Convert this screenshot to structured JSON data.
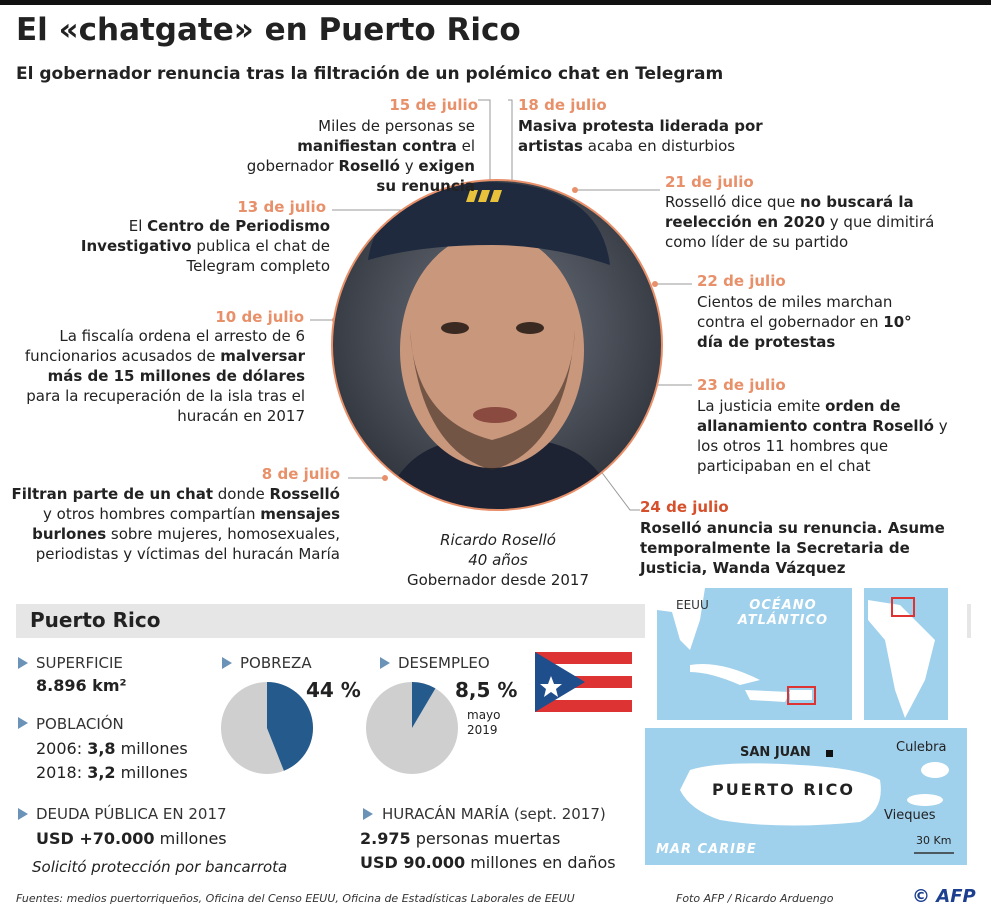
{
  "header": {
    "title": "El «chatgate» en Puerto Rico",
    "subtitle": "El gobernador renuncia tras la filtración de un polémico chat en Telegram"
  },
  "timeline": [
    {
      "date": "15 de julio",
      "text": [
        {
          "text": "Miles de personas se "
        },
        {
          "text": "manifiestan contra",
          "bold": true
        },
        {
          "text": " el gobernador "
        },
        {
          "text": "Roselló",
          "bold": true
        },
        {
          "text": " y "
        },
        {
          "text": "exigen su renuncia",
          "bold": true
        }
      ]
    },
    {
      "date": "18 de julio",
      "text": [
        {
          "text": "Masiva protesta liderada por artistas",
          "bold": true
        },
        {
          "text": " acaba en disturbios"
        }
      ]
    },
    {
      "date": "13 de julio",
      "text": [
        {
          "text": "El "
        },
        {
          "text": "Centro de Periodismo Investigativo",
          "bold": true
        },
        {
          "text": " publica el chat de Telegram completo"
        }
      ]
    },
    {
      "date": "21 de julio",
      "text": [
        {
          "text": "Rosselló dice que "
        },
        {
          "text": "no buscará la reelección en 2020",
          "bold": true
        },
        {
          "text": " y que dimitirá como líder de su partido"
        }
      ]
    },
    {
      "date": "10 de julio",
      "text": [
        {
          "text": "La fiscalía ordena el arresto de 6 funcionarios acusados de "
        },
        {
          "text": "malversar más de 15 millones de dólares",
          "bold": true
        },
        {
          "text": " para la recuperación de la isla tras el huracán en 2017"
        }
      ]
    },
    {
      "date": "22 de julio",
      "text": [
        {
          "text": "Cientos de miles marchan contra el gobernador en "
        },
        {
          "text": "10° día de protestas",
          "bold": true
        }
      ]
    },
    {
      "date": "23 de julio",
      "text": [
        {
          "text": "La justicia emite "
        },
        {
          "text": "orden de allanamiento contra Roselló",
          "bold": true
        },
        {
          "text": " y los otros 11 hombres que participaban en el chat"
        }
      ]
    },
    {
      "date": "8 de julio",
      "text": [
        {
          "text": "Filtran parte de un chat",
          "bold": true
        },
        {
          "text": " donde "
        },
        {
          "text": "Rosselló",
          "bold": true
        },
        {
          "text": " y otros hombres compartían "
        },
        {
          "text": "mensajes burlones",
          "bold": true
        },
        {
          "text": " sobre mujeres, homosexuales,  periodistas y víctimas del huracán María"
        }
      ]
    },
    {
      "date": "24 de julio",
      "text": [
        {
          "text": "Roselló anuncia su renuncia. Asume temporalmente la Secretaria de Justicia, Wanda Vázquez",
          "bold": true
        }
      ]
    }
  ],
  "person": {
    "name": "Ricardo Roselló",
    "age": "40 años",
    "role": "Gobernador desde 2017"
  },
  "facts": {
    "title": "Puerto Rico",
    "area": {
      "label": "SUPERFICIE",
      "value": "8.896 km²"
    },
    "population": {
      "label": "POBLACIÓN",
      "rows": [
        [
          {
            "text": "2006: "
          },
          {
            "text": "3,8",
            "bold": true
          },
          {
            "text": " millones"
          }
        ],
        [
          {
            "text": "2018: "
          },
          {
            "text": "3,2",
            "bold": true
          },
          {
            "text": " millones"
          }
        ]
      ]
    },
    "debt": {
      "label": "DEUDA PÚBLICA EN 2017",
      "value": [
        {
          "text": "USD +70.000",
          "bold": true
        },
        {
          "text": " millones"
        }
      ],
      "note": "Solicitó protección por bancarrota"
    },
    "poverty": {
      "label": "POBREZA",
      "pie": {
        "value": 44,
        "label": "44 %"
      }
    },
    "unemployment": {
      "label": "DESEMPLEO",
      "pie": {
        "value": 8.5,
        "label": "8,5 %"
      },
      "note": [
        "mayo",
        "2019"
      ]
    },
    "hurricane": {
      "label": "HURACÁN MARÍA (sept. 2017)",
      "rows": [
        [
          {
            "text": "2.975",
            "bold": true
          },
          {
            "text": " personas muertas"
          }
        ],
        [
          {
            "text": "USD 90.000",
            "bold": true
          },
          {
            "text": " millones en daños"
          }
        ]
      ]
    }
  },
  "map": {
    "usa": "EEUU",
    "ocean": "OCÉANO ATLÁNTICO",
    "capital": "SAN JUAN",
    "island": "PUERTO RICO",
    "culebra": "Culebra",
    "vieques": "Vieques",
    "sea": "MAR CARIBE",
    "scale": "30 Km"
  },
  "footer": {
    "sources": "Fuentes: medios puertorriqueños, Oficina del Censo EEUU, Oficina de Estadísticas Laborales de EEUU",
    "photo": "Foto AFP / Ricardo Arduengo",
    "agency": "© AFP"
  }
}
